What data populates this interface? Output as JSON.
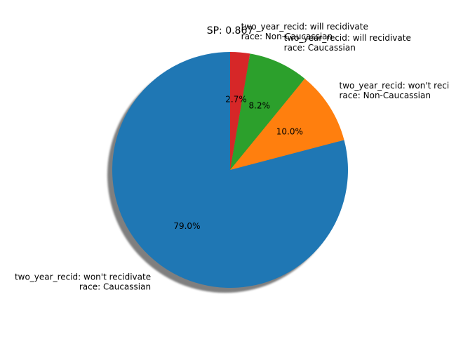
{
  "chart_data": {
    "type": "pie",
    "title": "SP: 0.867",
    "slices": [
      {
        "label_lines": [
          "two_year_recid: won't recidivate",
          "race: Caucassian"
        ],
        "value": 79.0,
        "pct_label": "79.0%",
        "color": "#1f77b4"
      },
      {
        "label_lines": [
          "two_year_recid: won't recidivate",
          "race: Non-Caucassian"
        ],
        "value": 10.0,
        "pct_label": "10.0%",
        "color": "#ff7f0e"
      },
      {
        "label_lines": [
          "two_year_recid: will recidivate",
          "race: Caucassian"
        ],
        "value": 8.2,
        "pct_label": "8.2%",
        "color": "#2ca02c"
      },
      {
        "label_lines": [
          "two_year_recid: will recidivate",
          "race: Non-Caucassian"
        ],
        "value": 2.7,
        "pct_label": "2.7%",
        "color": "#d62728"
      }
    ],
    "start_angle_deg": 90,
    "direction": "counterclockwise",
    "shadow": true
  }
}
